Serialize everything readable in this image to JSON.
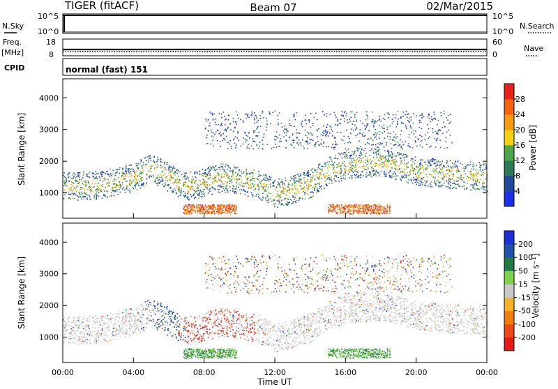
{
  "header": {
    "station": "TIGER (fitACF)",
    "beam": "Beam 07",
    "date": "02/Mar/2015"
  },
  "panels": {
    "nsky": {
      "left_label": "N.Sky",
      "tick_top": "10^5",
      "tick_bottom": "10^0",
      "right_label": "N.Search"
    },
    "freq": {
      "left_label_1": "Freq.",
      "left_label_2": "[MHz]",
      "tick_top_left": "18",
      "tick_bottom_left": "8",
      "tick_top_right": "60",
      "tick_bottom_right": "0",
      "right_label": "Nave",
      "level_fraction": 0.55
    },
    "cpid": {
      "left_label": "CPID",
      "program": "normal (fast) 151"
    }
  },
  "chart_data": [
    {
      "type": "heatmap",
      "title": "Power",
      "ylabel": "Slant Range [km]",
      "xlabel": "",
      "ylim": [
        200,
        4600
      ],
      "y_ticks": [
        "1000",
        "2000",
        "3000",
        "4000"
      ],
      "colorbar": {
        "label": "Power [dB]",
        "ticks": [
          "4",
          "8",
          "12",
          "16",
          "20",
          "24",
          "28"
        ],
        "colors": [
          "#1f2fe6",
          "#23489a",
          "#2e7a52",
          "#4da64a",
          "#f6cf12",
          "#f59b13",
          "#f06414",
          "#e8241a"
        ]
      }
    },
    {
      "type": "heatmap",
      "title": "Velocity",
      "ylabel": "Slant Range [km]",
      "xlabel": "Time UT",
      "ylim": [
        200,
        4600
      ],
      "y_ticks": [
        "1000",
        "2000",
        "3000",
        "4000"
      ],
      "x_ticks": [
        "00:00",
        "04:00",
        "08:00",
        "12:00",
        "16:00",
        "20:00",
        "00:00"
      ],
      "colorbar": {
        "label": "Velocity [m s⁻¹]",
        "ticks": [
          "200",
          "100",
          "50",
          "15",
          "-15",
          "-50",
          "-100",
          "-200"
        ],
        "colors": [
          "#1e2fd6",
          "#2152a8",
          "#1f7a45",
          "#7fd24c",
          "#c8c8c8",
          "#f5b32a",
          "#f07d10",
          "#ec4a14",
          "#e21a18"
        ]
      }
    }
  ]
}
